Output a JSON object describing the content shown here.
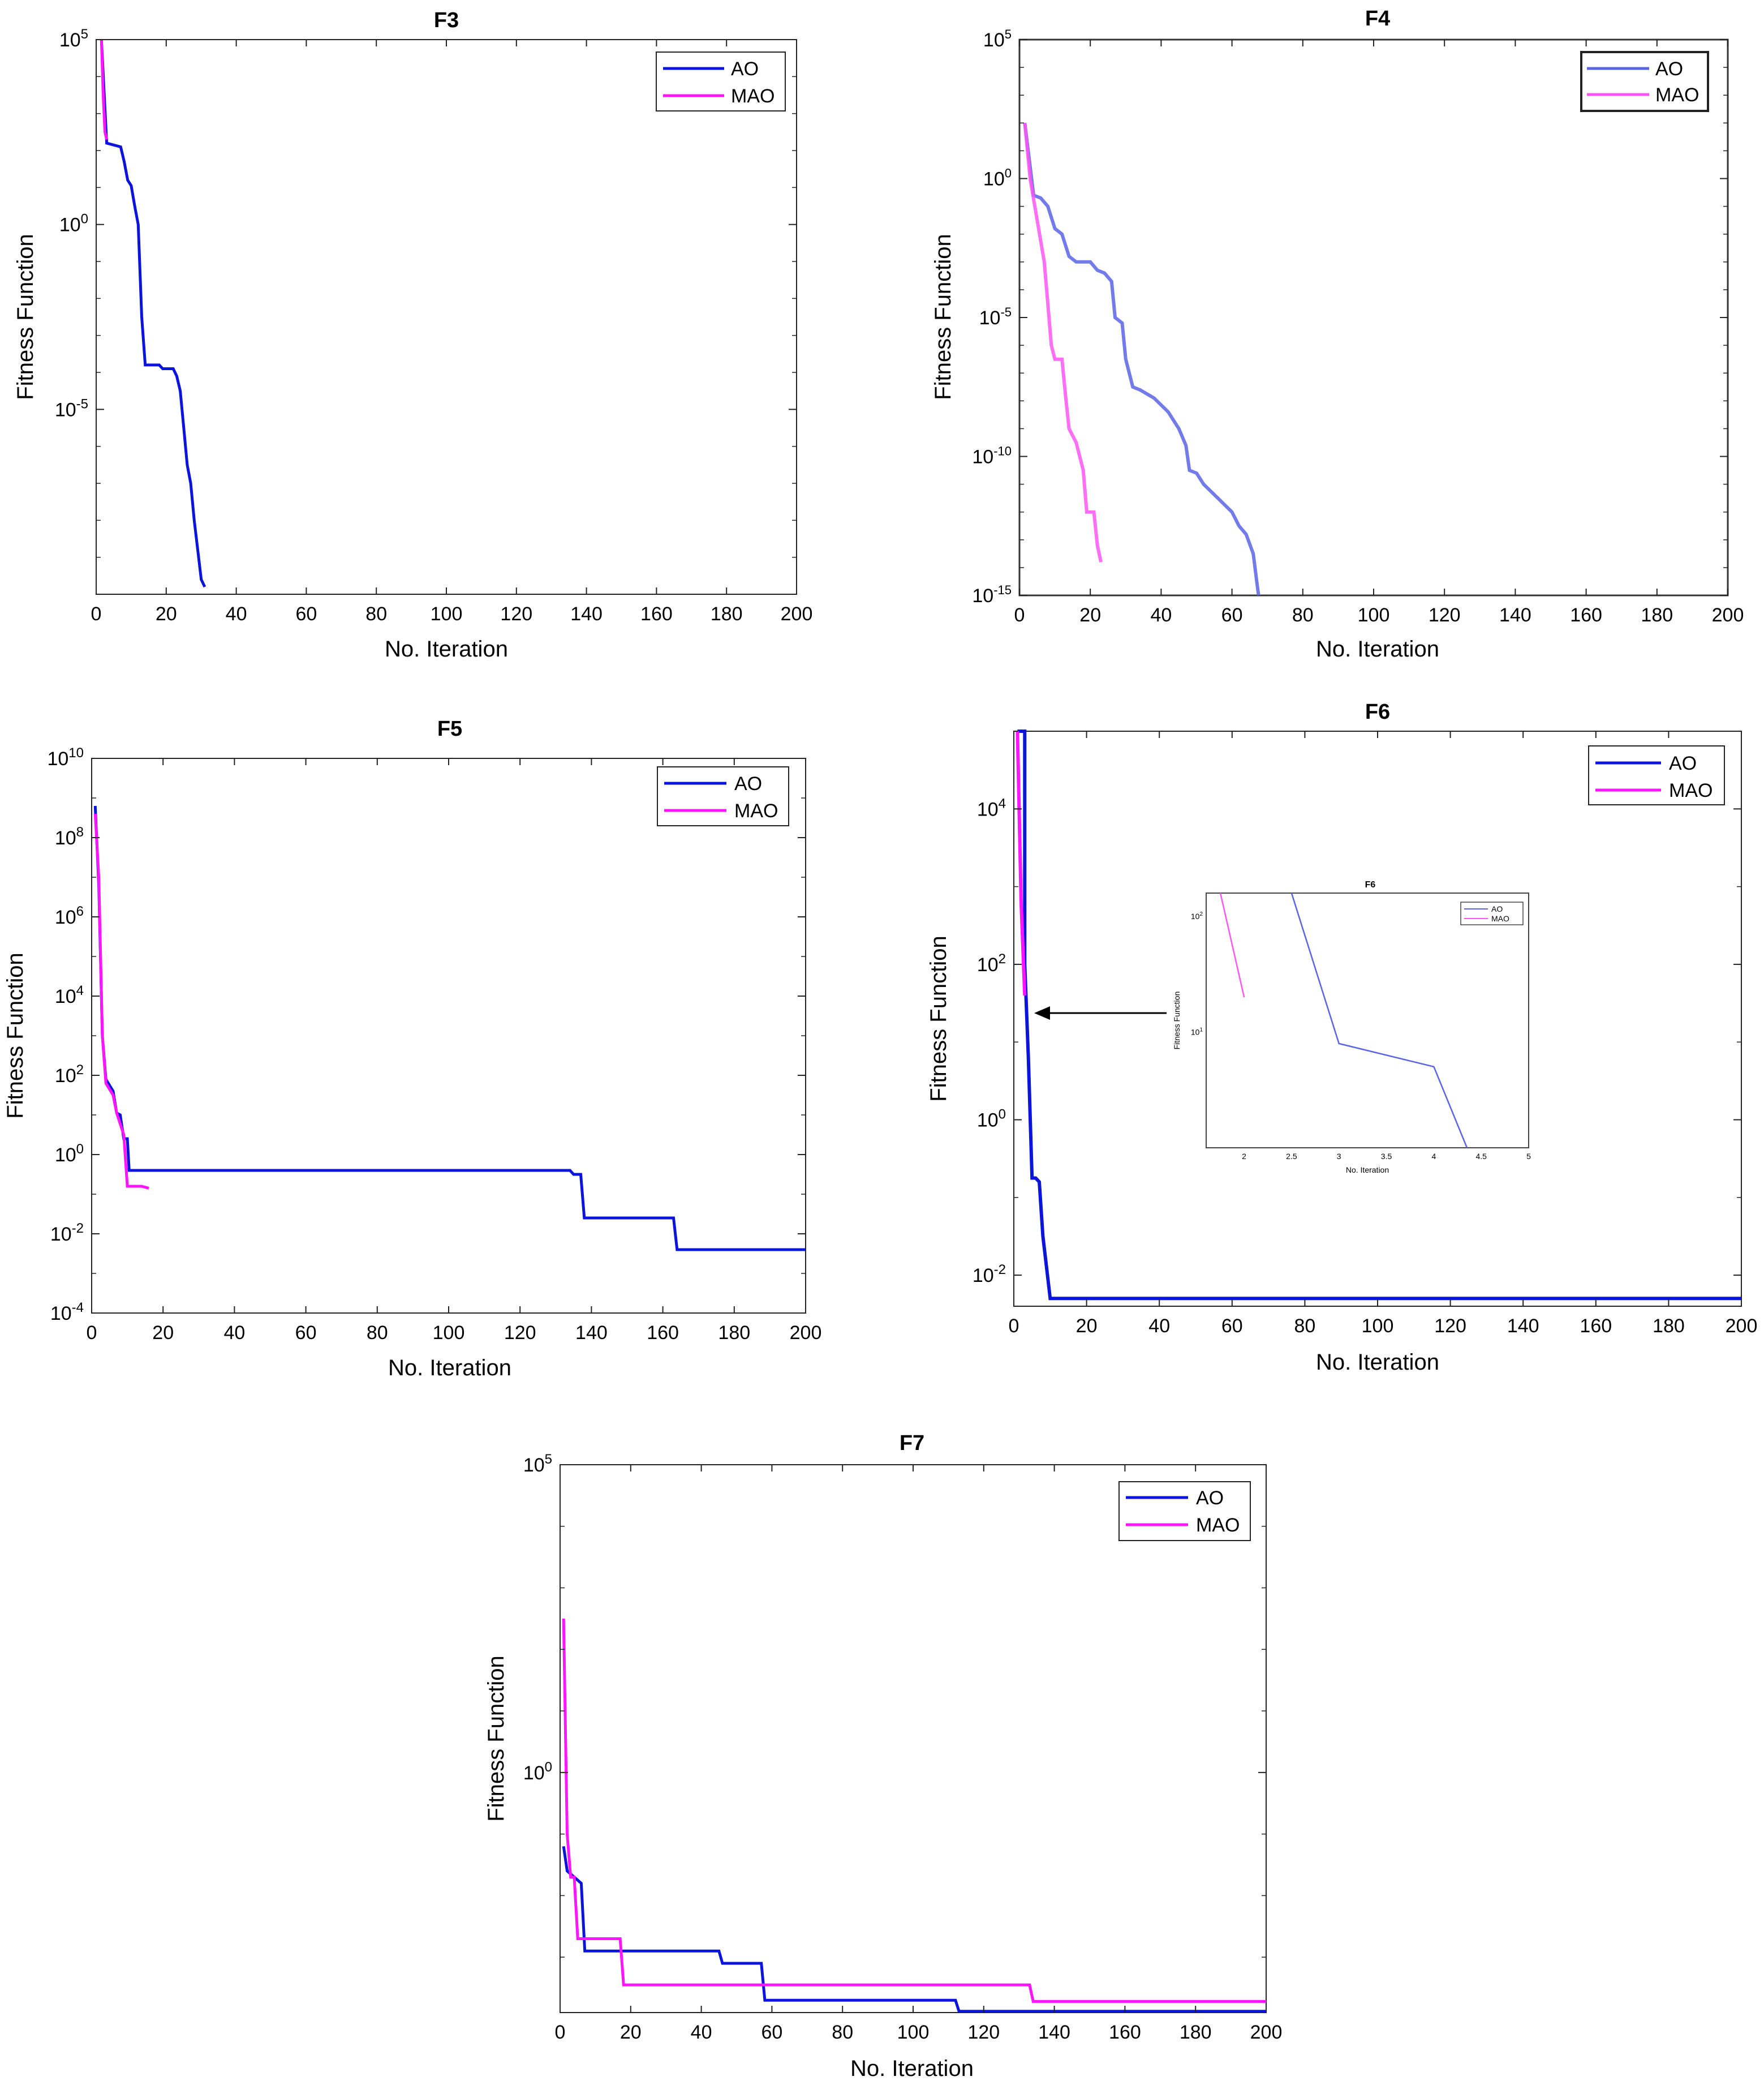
{
  "figure_title": "Convergence curves of AO and MAO",
  "colors": {
    "AO": "#0a14dc",
    "MAO": "#ff14ff",
    "AO_blurred": "#5a64e6",
    "MAO_blurred": "#ff55f5",
    "axis": "#222222"
  },
  "chart_data": [
    {
      "id": "F3",
      "type": "line",
      "title": "F3",
      "xlabel": "No. Iteration",
      "ylabel": "Fitness Function",
      "yscale": "log",
      "xlim": [
        0,
        200
      ],
      "ylim_exp": [
        -10,
        5
      ],
      "xticks": [
        "0",
        "20",
        "40",
        "60",
        "80",
        "100",
        "120",
        "140",
        "160",
        "180",
        "200"
      ],
      "yticks": [
        {
          "exp": 5,
          "label": "5"
        },
        {
          "exp": 0,
          "label": "0"
        },
        {
          "exp": -5,
          "label": "-5"
        }
      ],
      "legend": [
        "AO",
        "MAO"
      ],
      "series": [
        {
          "name": "AO",
          "points": [
            [
              1.5,
              5
            ],
            [
              3,
              2.2
            ],
            [
              7,
              2.1
            ],
            [
              8,
              1.7
            ],
            [
              9,
              1.2
            ],
            [
              10,
              1.05
            ],
            [
              11,
              0.5
            ],
            [
              12,
              0
            ],
            [
              13,
              -2.5
            ],
            [
              14,
              -3.8
            ],
            [
              18,
              -3.8
            ],
            [
              19,
              -3.9
            ],
            [
              22,
              -3.9
            ],
            [
              23,
              -4.1
            ],
            [
              24,
              -4.5
            ],
            [
              25,
              -5.5
            ],
            [
              26,
              -6.5
            ],
            [
              27,
              -7
            ],
            [
              28,
              -8
            ],
            [
              29,
              -8.8
            ],
            [
              30,
              -9.6
            ],
            [
              31,
              -9.8
            ]
          ]
        },
        {
          "name": "MAO",
          "points": [
            [
              1.5,
              5
            ],
            [
              2,
              3.5
            ],
            [
              2.5,
              2.5
            ],
            [
              3,
              2.3
            ]
          ]
        }
      ]
    },
    {
      "id": "F4",
      "type": "line",
      "title": "F4",
      "xlabel": "No. Iteration",
      "ylabel": "Fitness Function",
      "yscale": "log",
      "xlim": [
        0,
        200
      ],
      "ylim_exp": [
        -15,
        5
      ],
      "xticks": [
        "0",
        "20",
        "40",
        "60",
        "80",
        "100",
        "120",
        "140",
        "160",
        "180",
        "200"
      ],
      "yticks": [
        {
          "exp": 5,
          "label": "5"
        },
        {
          "exp": 0,
          "label": "0"
        },
        {
          "exp": -5,
          "label": "-5"
        },
        {
          "exp": -10,
          "label": "-10"
        },
        {
          "exp": -15,
          "label": "-15"
        }
      ],
      "legend": [
        "AO",
        "MAO"
      ],
      "series": [
        {
          "name": "AO",
          "points": [
            [
              1.5,
              2
            ],
            [
              4,
              -0.6
            ],
            [
              6,
              -0.7
            ],
            [
              8,
              -1
            ],
            [
              10,
              -1.8
            ],
            [
              12,
              -2
            ],
            [
              14,
              -2.8
            ],
            [
              16,
              -3
            ],
            [
              20,
              -3
            ],
            [
              22,
              -3.3
            ],
            [
              24,
              -3.4
            ],
            [
              26,
              -3.7
            ],
            [
              27,
              -5
            ],
            [
              29,
              -5.2
            ],
            [
              30,
              -6.5
            ],
            [
              32,
              -7.5
            ],
            [
              34,
              -7.6
            ],
            [
              38,
              -7.9
            ],
            [
              42,
              -8.4
            ],
            [
              45,
              -9
            ],
            [
              47,
              -9.6
            ],
            [
              48,
              -10.5
            ],
            [
              50,
              -10.6
            ],
            [
              52,
              -11
            ],
            [
              56,
              -11.5
            ],
            [
              60,
              -12
            ],
            [
              62,
              -12.5
            ],
            [
              64,
              -12.8
            ],
            [
              66,
              -13.5
            ],
            [
              67,
              -14.5
            ],
            [
              67.5,
              -15
            ]
          ]
        },
        {
          "name": "MAO",
          "points": [
            [
              1.5,
              2
            ],
            [
              3,
              0
            ],
            [
              5,
              -1.5
            ],
            [
              7,
              -3
            ],
            [
              8,
              -4.5
            ],
            [
              9,
              -6
            ],
            [
              10,
              -6.5
            ],
            [
              12,
              -6.5
            ],
            [
              13,
              -7.8
            ],
            [
              14,
              -9
            ],
            [
              16,
              -9.5
            ],
            [
              18,
              -10.5
            ],
            [
              19,
              -12
            ],
            [
              21,
              -12
            ],
            [
              22,
              -13.2
            ],
            [
              23,
              -13.8
            ]
          ]
        }
      ]
    },
    {
      "id": "F5",
      "type": "line",
      "title": "F5",
      "xlabel": "No. Iteration",
      "ylabel": "Fitness Function",
      "yscale": "log",
      "xlim": [
        0,
        200
      ],
      "ylim_exp": [
        -4,
        10
      ],
      "xticks": [
        "0",
        "20",
        "40",
        "60",
        "80",
        "100",
        "120",
        "140",
        "160",
        "180",
        "200"
      ],
      "yticks": [
        {
          "exp": 10,
          "label": "10"
        },
        {
          "exp": 8,
          "label": "8"
        },
        {
          "exp": 6,
          "label": "6"
        },
        {
          "exp": 4,
          "label": "4"
        },
        {
          "exp": 2,
          "label": "2"
        },
        {
          "exp": 0,
          "label": "0"
        },
        {
          "exp": -2,
          "label": "-2"
        },
        {
          "exp": -4,
          "label": "-4"
        }
      ],
      "legend": [
        "AO",
        "MAO"
      ],
      "series": [
        {
          "name": "AO",
          "points": [
            [
              1,
              8.8
            ],
            [
              2,
              6.8
            ],
            [
              3,
              3
            ],
            [
              4,
              1.9
            ],
            [
              6,
              1.6
            ],
            [
              7,
              1.05
            ],
            [
              8,
              1
            ],
            [
              9,
              0.4
            ],
            [
              10,
              0.4
            ],
            [
              10.5,
              -0.4
            ],
            [
              134,
              -0.4
            ],
            [
              135,
              -0.5
            ],
            [
              137,
              -0.5
            ],
            [
              138,
              -1.6
            ],
            [
              163,
              -1.6
            ],
            [
              164,
              -2.4
            ],
            [
              200,
              -2.4
            ]
          ]
        },
        {
          "name": "MAO",
          "points": [
            [
              1,
              8.6
            ],
            [
              2,
              7
            ],
            [
              3,
              3
            ],
            [
              4,
              1.8
            ],
            [
              6,
              1.5
            ],
            [
              7,
              1.05
            ],
            [
              9,
              0.5
            ],
            [
              10,
              -0.8
            ],
            [
              14,
              -0.8
            ],
            [
              16,
              -0.85
            ]
          ]
        }
      ]
    },
    {
      "id": "F6",
      "type": "line",
      "title": "F6",
      "xlabel": "No. Iteration",
      "ylabel": "Fitness Function",
      "yscale": "log",
      "xlim": [
        0,
        200
      ],
      "ylim_exp": [
        -2.4,
        5
      ],
      "xticks": [
        "0",
        "20",
        "40",
        "60",
        "80",
        "100",
        "120",
        "140",
        "160",
        "180",
        "200"
      ],
      "yticks": [
        {
          "exp": 4,
          "label": "4"
        },
        {
          "exp": 2,
          "label": "2"
        },
        {
          "exp": 0,
          "label": "0"
        },
        {
          "exp": -2,
          "label": "-2"
        }
      ],
      "legend": [
        "AO",
        "MAO"
      ],
      "series": [
        {
          "name": "AO",
          "points": [
            [
              1,
              5
            ],
            [
              3,
              5
            ],
            [
              3,
              2
            ],
            [
              4,
              0.8
            ],
            [
              5,
              -0.75
            ],
            [
              6,
              -0.75
            ],
            [
              7,
              -0.8
            ],
            [
              8,
              -1.5
            ],
            [
              10,
              -2.3
            ],
            [
              11,
              -2.3
            ],
            [
              200,
              -2.3
            ]
          ]
        },
        {
          "name": "MAO",
          "points": [
            [
              1,
              5
            ],
            [
              2,
              2.8
            ],
            [
              3,
              1.6
            ]
          ]
        }
      ],
      "inset": {
        "title": "F6",
        "xlabel": "No. Iteration",
        "ylabel": "Fitness Function",
        "xlim": [
          1.6,
          5
        ],
        "ylim_exp": [
          0,
          2.2
        ],
        "xticks": [
          "2",
          "2.5",
          "3",
          "3.5",
          "4",
          "4.5",
          "5"
        ],
        "yticks": [
          {
            "exp": 2,
            "label": "2"
          },
          {
            "exp": 1,
            "label": "1"
          }
        ],
        "legend": [
          "AO",
          "MAO"
        ],
        "series": [
          {
            "name": "AO",
            "points": [
              [
                2.5,
                2.2
              ],
              [
                3,
                0.9
              ],
              [
                4,
                0.7
              ],
              [
                4.35,
                0
              ]
            ]
          },
          {
            "name": "MAO",
            "points": [
              [
                1.75,
                2.2
              ],
              [
                2,
                1.3
              ]
            ]
          }
        ]
      }
    },
    {
      "id": "F7",
      "type": "line",
      "title": "F7",
      "xlabel": "No. Iteration",
      "ylabel": "Fitness Function",
      "yscale": "log",
      "xlim": [
        0,
        200
      ],
      "ylim_exp": [
        -3.9,
        5
      ],
      "xticks": [
        "0",
        "20",
        "40",
        "60",
        "80",
        "100",
        "120",
        "140",
        "160",
        "180",
        "200"
      ],
      "yticks": [
        {
          "exp": 5,
          "label": "5"
        },
        {
          "exp": 0,
          "label": "0"
        }
      ],
      "legend": [
        "AO",
        "MAO"
      ],
      "series": [
        {
          "name": "AO",
          "points": [
            [
              1,
              -1.2
            ],
            [
              2,
              -1.6
            ],
            [
              6,
              -1.8
            ],
            [
              7,
              -2.9
            ],
            [
              45,
              -2.9
            ],
            [
              46,
              -3.1
            ],
            [
              57,
              -3.1
            ],
            [
              58,
              -3.7
            ],
            [
              112,
              -3.7
            ],
            [
              113,
              -3.88
            ],
            [
              200,
              -3.88
            ]
          ]
        },
        {
          "name": "MAO",
          "points": [
            [
              1,
              2.5
            ],
            [
              2,
              -1
            ],
            [
              3,
              -1.7
            ],
            [
              4,
              -1.7
            ],
            [
              5,
              -2.7
            ],
            [
              17,
              -2.7
            ],
            [
              18,
              -3.45
            ],
            [
              133,
              -3.45
            ],
            [
              134,
              -3.72
            ],
            [
              200,
              -3.72
            ]
          ]
        }
      ]
    }
  ]
}
